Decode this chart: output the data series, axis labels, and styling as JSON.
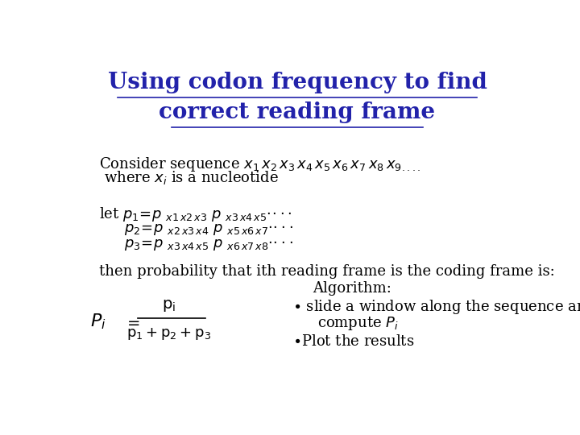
{
  "title_line1": "Using codon frequency to find",
  "title_line2": "correct reading frame",
  "title_color": "#2222AA",
  "title_fontsize": 20,
  "bg_color": "#ffffff",
  "body_fontsize": 13,
  "body_color": "#000000"
}
